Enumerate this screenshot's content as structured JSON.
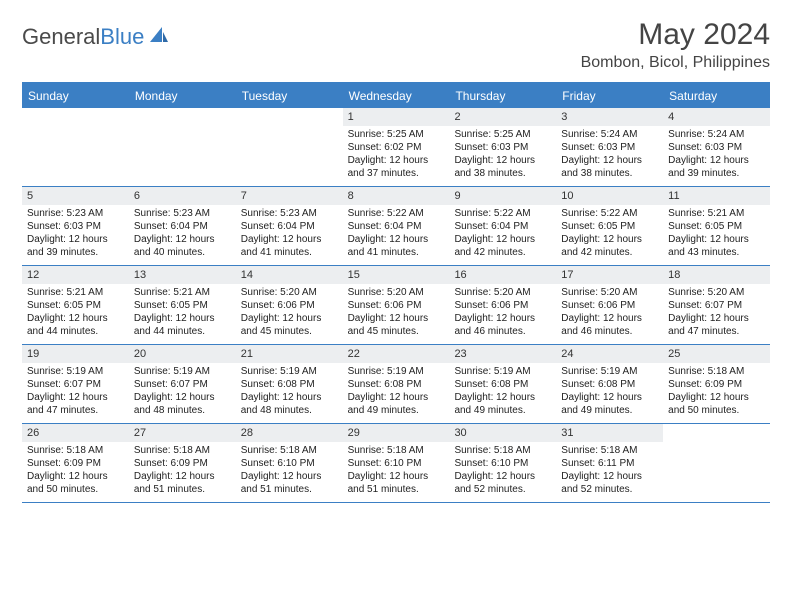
{
  "brand": {
    "text1": "General",
    "text2": "Blue"
  },
  "title": "May 2024",
  "location": "Bombon, Bicol, Philippines",
  "colors": {
    "accent": "#3b7fc4",
    "header_bg": "#3b7fc4",
    "daynum_bg": "#eceef0",
    "text": "#333333",
    "background": "#ffffff"
  },
  "daysOfWeek": [
    "Sunday",
    "Monday",
    "Tuesday",
    "Wednesday",
    "Thursday",
    "Friday",
    "Saturday"
  ],
  "weeks": [
    [
      {
        "n": "",
        "sr": "",
        "ss": "",
        "dl": ""
      },
      {
        "n": "",
        "sr": "",
        "ss": "",
        "dl": ""
      },
      {
        "n": "",
        "sr": "",
        "ss": "",
        "dl": ""
      },
      {
        "n": "1",
        "sr": "Sunrise: 5:25 AM",
        "ss": "Sunset: 6:02 PM",
        "dl": "Daylight: 12 hours and 37 minutes."
      },
      {
        "n": "2",
        "sr": "Sunrise: 5:25 AM",
        "ss": "Sunset: 6:03 PM",
        "dl": "Daylight: 12 hours and 38 minutes."
      },
      {
        "n": "3",
        "sr": "Sunrise: 5:24 AM",
        "ss": "Sunset: 6:03 PM",
        "dl": "Daylight: 12 hours and 38 minutes."
      },
      {
        "n": "4",
        "sr": "Sunrise: 5:24 AM",
        "ss": "Sunset: 6:03 PM",
        "dl": "Daylight: 12 hours and 39 minutes."
      }
    ],
    [
      {
        "n": "5",
        "sr": "Sunrise: 5:23 AM",
        "ss": "Sunset: 6:03 PM",
        "dl": "Daylight: 12 hours and 39 minutes."
      },
      {
        "n": "6",
        "sr": "Sunrise: 5:23 AM",
        "ss": "Sunset: 6:04 PM",
        "dl": "Daylight: 12 hours and 40 minutes."
      },
      {
        "n": "7",
        "sr": "Sunrise: 5:23 AM",
        "ss": "Sunset: 6:04 PM",
        "dl": "Daylight: 12 hours and 41 minutes."
      },
      {
        "n": "8",
        "sr": "Sunrise: 5:22 AM",
        "ss": "Sunset: 6:04 PM",
        "dl": "Daylight: 12 hours and 41 minutes."
      },
      {
        "n": "9",
        "sr": "Sunrise: 5:22 AM",
        "ss": "Sunset: 6:04 PM",
        "dl": "Daylight: 12 hours and 42 minutes."
      },
      {
        "n": "10",
        "sr": "Sunrise: 5:22 AM",
        "ss": "Sunset: 6:05 PM",
        "dl": "Daylight: 12 hours and 42 minutes."
      },
      {
        "n": "11",
        "sr": "Sunrise: 5:21 AM",
        "ss": "Sunset: 6:05 PM",
        "dl": "Daylight: 12 hours and 43 minutes."
      }
    ],
    [
      {
        "n": "12",
        "sr": "Sunrise: 5:21 AM",
        "ss": "Sunset: 6:05 PM",
        "dl": "Daylight: 12 hours and 44 minutes."
      },
      {
        "n": "13",
        "sr": "Sunrise: 5:21 AM",
        "ss": "Sunset: 6:05 PM",
        "dl": "Daylight: 12 hours and 44 minutes."
      },
      {
        "n": "14",
        "sr": "Sunrise: 5:20 AM",
        "ss": "Sunset: 6:06 PM",
        "dl": "Daylight: 12 hours and 45 minutes."
      },
      {
        "n": "15",
        "sr": "Sunrise: 5:20 AM",
        "ss": "Sunset: 6:06 PM",
        "dl": "Daylight: 12 hours and 45 minutes."
      },
      {
        "n": "16",
        "sr": "Sunrise: 5:20 AM",
        "ss": "Sunset: 6:06 PM",
        "dl": "Daylight: 12 hours and 46 minutes."
      },
      {
        "n": "17",
        "sr": "Sunrise: 5:20 AM",
        "ss": "Sunset: 6:06 PM",
        "dl": "Daylight: 12 hours and 46 minutes."
      },
      {
        "n": "18",
        "sr": "Sunrise: 5:20 AM",
        "ss": "Sunset: 6:07 PM",
        "dl": "Daylight: 12 hours and 47 minutes."
      }
    ],
    [
      {
        "n": "19",
        "sr": "Sunrise: 5:19 AM",
        "ss": "Sunset: 6:07 PM",
        "dl": "Daylight: 12 hours and 47 minutes."
      },
      {
        "n": "20",
        "sr": "Sunrise: 5:19 AM",
        "ss": "Sunset: 6:07 PM",
        "dl": "Daylight: 12 hours and 48 minutes."
      },
      {
        "n": "21",
        "sr": "Sunrise: 5:19 AM",
        "ss": "Sunset: 6:08 PM",
        "dl": "Daylight: 12 hours and 48 minutes."
      },
      {
        "n": "22",
        "sr": "Sunrise: 5:19 AM",
        "ss": "Sunset: 6:08 PM",
        "dl": "Daylight: 12 hours and 49 minutes."
      },
      {
        "n": "23",
        "sr": "Sunrise: 5:19 AM",
        "ss": "Sunset: 6:08 PM",
        "dl": "Daylight: 12 hours and 49 minutes."
      },
      {
        "n": "24",
        "sr": "Sunrise: 5:19 AM",
        "ss": "Sunset: 6:08 PM",
        "dl": "Daylight: 12 hours and 49 minutes."
      },
      {
        "n": "25",
        "sr": "Sunrise: 5:18 AM",
        "ss": "Sunset: 6:09 PM",
        "dl": "Daylight: 12 hours and 50 minutes."
      }
    ],
    [
      {
        "n": "26",
        "sr": "Sunrise: 5:18 AM",
        "ss": "Sunset: 6:09 PM",
        "dl": "Daylight: 12 hours and 50 minutes."
      },
      {
        "n": "27",
        "sr": "Sunrise: 5:18 AM",
        "ss": "Sunset: 6:09 PM",
        "dl": "Daylight: 12 hours and 51 minutes."
      },
      {
        "n": "28",
        "sr": "Sunrise: 5:18 AM",
        "ss": "Sunset: 6:10 PM",
        "dl": "Daylight: 12 hours and 51 minutes."
      },
      {
        "n": "29",
        "sr": "Sunrise: 5:18 AM",
        "ss": "Sunset: 6:10 PM",
        "dl": "Daylight: 12 hours and 51 minutes."
      },
      {
        "n": "30",
        "sr": "Sunrise: 5:18 AM",
        "ss": "Sunset: 6:10 PM",
        "dl": "Daylight: 12 hours and 52 minutes."
      },
      {
        "n": "31",
        "sr": "Sunrise: 5:18 AM",
        "ss": "Sunset: 6:11 PM",
        "dl": "Daylight: 12 hours and 52 minutes."
      },
      {
        "n": "",
        "sr": "",
        "ss": "",
        "dl": ""
      }
    ]
  ]
}
